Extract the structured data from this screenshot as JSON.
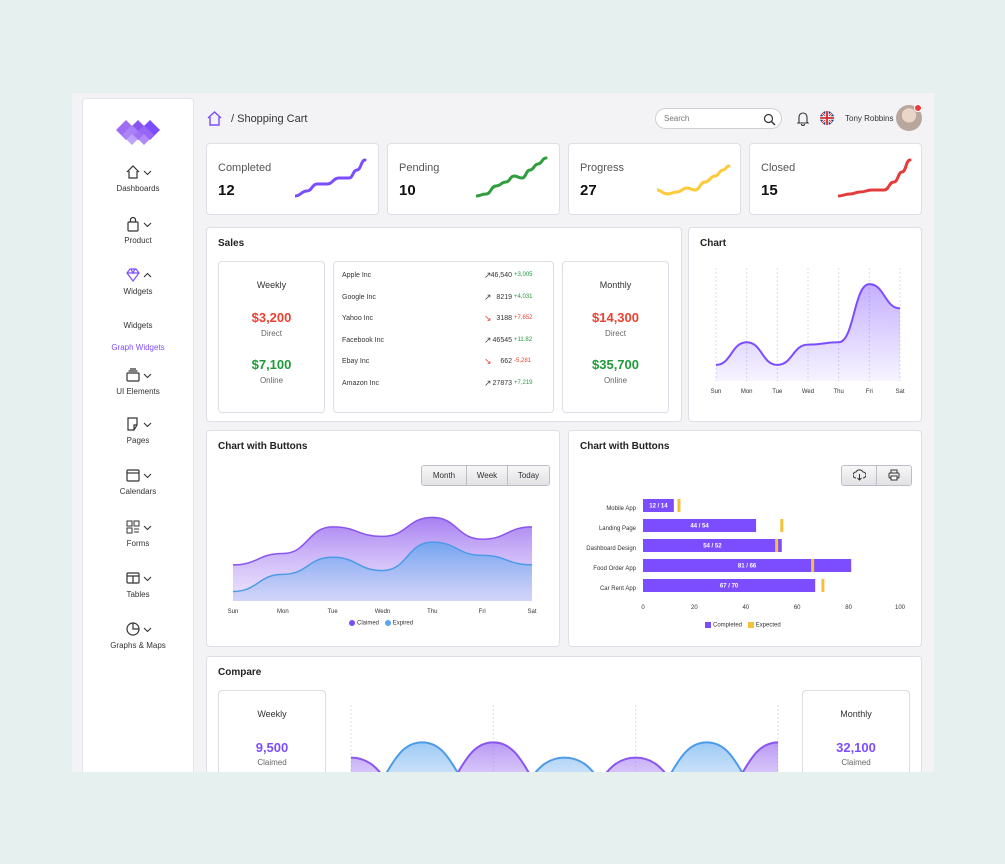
{
  "sidebar": {
    "items": [
      {
        "label": "Dashboards",
        "icon": "home-icon"
      },
      {
        "label": "Product",
        "icon": "bag-icon"
      },
      {
        "label": "Widgets",
        "icon": "diamond-icon"
      },
      {
        "label": "UI Elements",
        "icon": "layers-icon"
      },
      {
        "label": "Pages",
        "icon": "pages-icon"
      },
      {
        "label": "Calendars",
        "icon": "calendar-icon"
      },
      {
        "label": "Forms",
        "icon": "forms-icon"
      },
      {
        "label": "Tables",
        "icon": "table-icon"
      },
      {
        "label": "Graphs & Maps",
        "icon": "pie-icon"
      }
    ],
    "sub_items": [
      {
        "label": "Widgets"
      },
      {
        "label": "Graph Widgets",
        "active": true
      }
    ],
    "accent": "#7c4dff"
  },
  "header": {
    "breadcrumb": "/ Shopping Cart",
    "search_placeholder": "Search",
    "user_name": "Tony Robbins"
  },
  "stats": [
    {
      "title": "Completed",
      "value": "12",
      "color": "#7c4dff"
    },
    {
      "title": "Pending",
      "value": "10",
      "color": "#2e9e3f"
    },
    {
      "title": "Progress",
      "value": "27",
      "color": "#ffca3a"
    },
    {
      "title": "Closed",
      "value": "15",
      "color": "#e23c3c"
    }
  ],
  "sales": {
    "title": "Sales",
    "weekly": {
      "title": "Weekly",
      "direct": "$3,200",
      "direct_label": "Direct",
      "online": "$7,100",
      "online_label": "Online"
    },
    "monthly": {
      "title": "Monthly",
      "direct": "$14,300",
      "direct_label": "Direct",
      "online": "$35,700",
      "online_label": "Online"
    },
    "stocks": [
      {
        "name": "Apple Inc",
        "dir": "up",
        "value": "46,540",
        "change": "+3,005"
      },
      {
        "name": "Google Inc",
        "dir": "up",
        "value": "8219",
        "change": "+4,031"
      },
      {
        "name": "Yahoo Inc",
        "dir": "down",
        "value": "3188",
        "change": "+7,652"
      },
      {
        "name": "Facebook Inc",
        "dir": "up",
        "value": "46545",
        "change": "+11.82"
      },
      {
        "name": "Ebay Inc",
        "dir": "down",
        "value": "662",
        "change": "-5,281"
      },
      {
        "name": "Amazon Inc",
        "dir": "up",
        "value": "27873",
        "change": "+7,219"
      }
    ],
    "colors": {
      "red": "#e8412f",
      "green": "#1f9a3a"
    }
  },
  "chart_data": [
    {
      "type": "area",
      "title": "Chart",
      "categories": [
        "Sun",
        "Mon",
        "Tue",
        "Wed",
        "Thu",
        "Fri",
        "Sat"
      ],
      "series": [
        {
          "values": [
            20,
            48,
            20,
            45,
            48,
            120,
            90
          ]
        }
      ],
      "ylim": [
        0,
        140
      ],
      "color": "#7c4dff"
    },
    {
      "type": "area",
      "title": "Chart with Buttons",
      "categories": [
        "Sun",
        "Mon",
        "Tue",
        "Wedn",
        "Thu",
        "Fri",
        "Sat"
      ],
      "series": [
        {
          "name": "Claimed",
          "values": [
            38,
            50,
            78,
            68,
            88,
            65,
            78
          ],
          "color": "#9b6cf0"
        },
        {
          "name": "Expired",
          "values": [
            10,
            28,
            46,
            32,
            62,
            48,
            38
          ],
          "color": "#5aa6ee"
        }
      ],
      "ylim": [
        0,
        100
      ],
      "buttons": [
        "Month",
        "Week",
        "Today"
      ]
    },
    {
      "type": "bar",
      "title": "Chart with Buttons",
      "categories": [
        "Mobile App",
        "Landing Page",
        "Dashboard Design",
        "Food Order App",
        "Car Rent App"
      ],
      "series": [
        {
          "name": "Completed",
          "values": [
            12,
            44,
            54,
            81,
            67
          ],
          "color": "#7c4dff"
        },
        {
          "name": "Expected",
          "values": [
            14,
            54,
            52,
            66,
            70
          ],
          "color": "#f5c13b"
        }
      ],
      "bar_labels": [
        "12 / 14",
        "44 / 54",
        "54 / 52",
        "81 / 66",
        "67 / 70"
      ],
      "xticks": [
        "0",
        "20",
        "40",
        "60",
        "80",
        "100"
      ],
      "xlim": [
        0,
        100
      ]
    },
    {
      "type": "area",
      "title": "Compare",
      "series": [
        {
          "values": [
            65,
            5,
            85,
            5,
            65,
            5,
            85
          ]
        },
        {
          "values": [
            5,
            85,
            5,
            65,
            5,
            85,
            5
          ]
        }
      ],
      "ylim": [
        0,
        100
      ]
    }
  ],
  "compare": {
    "title": "Compare",
    "weekly": {
      "title": "Weekly",
      "value": "9,500",
      "label": "Claimed"
    },
    "monthly": {
      "title": "Monthly",
      "value": "32,100",
      "label": "Claimed"
    }
  }
}
